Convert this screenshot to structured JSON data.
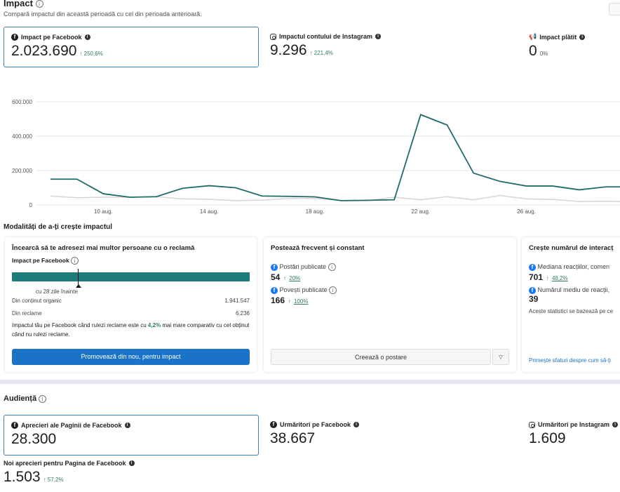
{
  "impact": {
    "title": "Impact",
    "subtitle": "Compară impactul din această perioadă cu cel din perioada anterioară.",
    "metrics": [
      {
        "label": "Impact pe Facebook",
        "value": "2.023.690",
        "delta": "↑ 250,6%",
        "icon": "facebook-icon"
      },
      {
        "label": "Impactul contului de Instagram",
        "value": "9.296",
        "delta": "↑ 221,4%",
        "icon": "instagram-icon"
      },
      {
        "label": "Impact plătit",
        "value": "0",
        "delta": "0%",
        "icon": "megaphone-icon"
      }
    ]
  },
  "chart_data": {
    "type": "line",
    "x": [
      "8 aug.",
      "9 aug.",
      "10 aug.",
      "11 aug.",
      "12 aug.",
      "13 aug.",
      "14 aug.",
      "15 aug.",
      "16 aug.",
      "17 aug.",
      "18 aug.",
      "19 aug.",
      "20 aug.",
      "21 aug.",
      "22 aug.",
      "23 aug.",
      "24 aug.",
      "25 aug.",
      "26 aug.",
      "27 aug.",
      "28 aug.",
      "29 aug.",
      "30 aug."
    ],
    "xticks": [
      "10 aug.",
      "14 aug.",
      "18 aug.",
      "22 aug.",
      "26 aug."
    ],
    "yticks": [
      "0",
      "200.000",
      "400.000",
      "600.000"
    ],
    "ylim": [
      0,
      600000
    ],
    "grid": true,
    "series": [
      {
        "color": "#1f6b6b",
        "values": [
          150000,
          150000,
          65000,
          45000,
          48000,
          97000,
          112000,
          100000,
          52000,
          50000,
          47000,
          25000,
          27000,
          30000,
          525000,
          465000,
          185000,
          137000,
          110000,
          110000,
          88000,
          105000,
          105000
        ]
      },
      {
        "color": "#d6d6d6",
        "values": [
          52000,
          42000,
          45000,
          45000,
          48000,
          35000,
          33000,
          25000,
          28000,
          37000,
          38000,
          25000,
          25000,
          45000,
          30000,
          48000,
          30000,
          55000,
          35000,
          32000,
          20000,
          22000,
          18000
        ]
      }
    ]
  },
  "ways": {
    "title": "Modalități de a-ți crește impactul",
    "ad": {
      "title": "Încearcă să te adresezi mai multor persoane cu o reclamă",
      "label": "Impact pe Facebook",
      "marker_fraction": 0.28,
      "marker_label": "cu 28 zile înainte",
      "organic_label": "Din conținut organic",
      "organic_value": "1.941.547",
      "ads_label": "Din reclame",
      "ads_value": "6.236",
      "note_pre": "Impactul tău pe Facebook când rulezi reclame este cu ",
      "note_pct": "4,2%",
      "note_post": " mai mare comparativ cu cel obținut când nu rulezi reclame.",
      "button": "Promovează din nou, pentru impact"
    },
    "post": {
      "title": "Postează frecvent și constant",
      "posts_label": "Postări publicate",
      "posts_value": "54",
      "posts_delta": "20%",
      "stories_label": "Povești publicate",
      "stories_value": "166",
      "stories_delta": "100%",
      "button": "Creează o postare"
    },
    "interact": {
      "title": "Crește numărul de interacț",
      "median_label": "Mediana reacțiilor, comen",
      "median_value": "701",
      "median_delta": "48,2%",
      "avg_label": "Numărul mediu de reacții,",
      "avg_value": "39",
      "note": "Aceste statistici se bazează pe ce",
      "link": "Primește sfaturi despre cum să-ți"
    }
  },
  "audience": {
    "title": "Audiență",
    "metrics": [
      {
        "label": "Aprecieri ale Paginii de Facebook",
        "value": "28.300"
      },
      {
        "label": "Urmăritori pe Facebook",
        "value": "38.667"
      },
      {
        "label": "Urmăritori pe Instagram",
        "value": "1.609"
      }
    ],
    "new_likes": {
      "label": "Noi aprecieri pentru Pagina de Facebook",
      "value": "1.503",
      "delta": "↑ 57,2%"
    }
  }
}
